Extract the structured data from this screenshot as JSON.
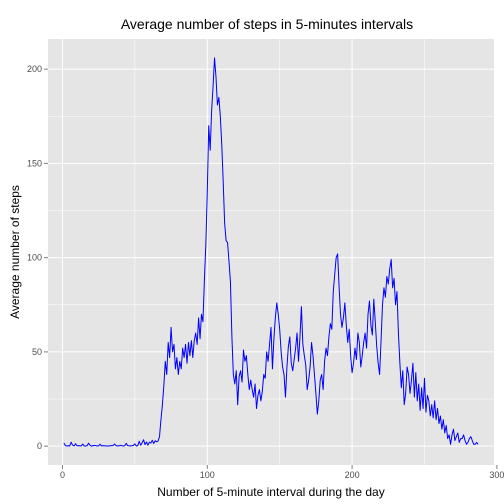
{
  "chart_data": {
    "type": "line",
    "title": "Average number of steps in 5-minutes intervals",
    "xlabel": "Number of 5-minute interval during the day",
    "ylabel": "Average number of steps",
    "xlim": [
      -10,
      298
    ],
    "ylim": [
      -10,
      216
    ],
    "xticks": [
      0,
      100,
      200,
      300
    ],
    "yticks": [
      0,
      50,
      100,
      150,
      200
    ],
    "grid": true,
    "legend": "none",
    "colors": {
      "panel": "#e5e5e5",
      "grid": "#ffffff",
      "line": "#0000ff",
      "tick_text": "#4d4d4d",
      "tick": "#7f7f7f"
    },
    "series": [
      {
        "points": [
          [
            1,
            1.7
          ],
          [
            2,
            0.3
          ],
          [
            3,
            0.1
          ],
          [
            4,
            0.2
          ],
          [
            5,
            0.1
          ],
          [
            6,
            2.1
          ],
          [
            7,
            0.5
          ],
          [
            8,
            0.1
          ],
          [
            9,
            1.3
          ],
          [
            10,
            0.2
          ],
          [
            11,
            0.3
          ],
          [
            12,
            0.2
          ],
          [
            13,
            0.1
          ],
          [
            14,
            1.1
          ],
          [
            15,
            0.1
          ],
          [
            16,
            0.1
          ],
          [
            17,
            0.2
          ],
          [
            18,
            1.6
          ],
          [
            19,
            0.5
          ],
          [
            20,
            0
          ],
          [
            21,
            0.2
          ],
          [
            22,
            0.4
          ],
          [
            23,
            0.3
          ],
          [
            24,
            0.1
          ],
          [
            25,
            0.2
          ],
          [
            26,
            1
          ],
          [
            27,
            0.1
          ],
          [
            28,
            0.3
          ],
          [
            29,
            0.2
          ],
          [
            30,
            0.1
          ],
          [
            31,
            0.1
          ],
          [
            32,
            0.1
          ],
          [
            33,
            0.2
          ],
          [
            34,
            0.3
          ],
          [
            35,
            0.3
          ],
          [
            36,
            1.2
          ],
          [
            37,
            0.3
          ],
          [
            38,
            0.1
          ],
          [
            39,
            0.2
          ],
          [
            40,
            0.4
          ],
          [
            41,
            0.2
          ],
          [
            42,
            0.1
          ],
          [
            43,
            0.2
          ],
          [
            44,
            1.5
          ],
          [
            45,
            0.3
          ],
          [
            46,
            0.2
          ],
          [
            47,
            0.1
          ],
          [
            48,
            0.2
          ],
          [
            49,
            0.4
          ],
          [
            50,
            1.2
          ],
          [
            51,
            0.1
          ],
          [
            52,
            0.3
          ],
          [
            53,
            2.6
          ],
          [
            54,
            0.5
          ],
          [
            55,
            1.8
          ],
          [
            56,
            3.4
          ],
          [
            57,
            0.8
          ],
          [
            58,
            2.2
          ],
          [
            59,
            0.5
          ],
          [
            60,
            2.1
          ],
          [
            61,
            1.6
          ],
          [
            62,
            3.1
          ],
          [
            63,
            1.4
          ],
          [
            64,
            2.9
          ],
          [
            65,
            2.3
          ],
          [
            66,
            2.7
          ],
          [
            67,
            5
          ],
          [
            68,
            14
          ],
          [
            69,
            22
          ],
          [
            70,
            32
          ],
          [
            71,
            45
          ],
          [
            72,
            38
          ],
          [
            73,
            55
          ],
          [
            74,
            47
          ],
          [
            75,
            63
          ],
          [
            76,
            50
          ],
          [
            77,
            54
          ],
          [
            78,
            41
          ],
          [
            79,
            47
          ],
          [
            80,
            38
          ],
          [
            81,
            45
          ],
          [
            82,
            41
          ],
          [
            83,
            52
          ],
          [
            84,
            47
          ],
          [
            85,
            54
          ],
          [
            86,
            44
          ],
          [
            87,
            55
          ],
          [
            88,
            48
          ],
          [
            89,
            56
          ],
          [
            90,
            47
          ],
          [
            91,
            56
          ],
          [
            92,
            60
          ],
          [
            93,
            54
          ],
          [
            94,
            68
          ],
          [
            95,
            57
          ],
          [
            96,
            70
          ],
          [
            97,
            66
          ],
          [
            98,
            88
          ],
          [
            99,
            107
          ],
          [
            100,
            135
          ],
          [
            101,
            170
          ],
          [
            102,
            157
          ],
          [
            103,
            178
          ],
          [
            104,
            191
          ],
          [
            105,
            206
          ],
          [
            106,
            196
          ],
          [
            107,
            181
          ],
          [
            108,
            185
          ],
          [
            109,
            175
          ],
          [
            110,
            160
          ],
          [
            111,
            140
          ],
          [
            112,
            118
          ],
          [
            113,
            109
          ],
          [
            114,
            108
          ],
          [
            115,
            98
          ],
          [
            116,
            87
          ],
          [
            117,
            58
          ],
          [
            118,
            38
          ],
          [
            119,
            33
          ],
          [
            120,
            40
          ],
          [
            121,
            22
          ],
          [
            122,
            37
          ],
          [
            123,
            40
          ],
          [
            124,
            34
          ],
          [
            125,
            51
          ],
          [
            126,
            45
          ],
          [
            127,
            48
          ],
          [
            128,
            38
          ],
          [
            129,
            30
          ],
          [
            130,
            35
          ],
          [
            131,
            30
          ],
          [
            132,
            26
          ],
          [
            133,
            33
          ],
          [
            134,
            20
          ],
          [
            135,
            27
          ],
          [
            136,
            30
          ],
          [
            137,
            24
          ],
          [
            138,
            29
          ],
          [
            139,
            38
          ],
          [
            140,
            36
          ],
          [
            141,
            50
          ],
          [
            142,
            45
          ],
          [
            143,
            54
          ],
          [
            144,
            63
          ],
          [
            145,
            41
          ],
          [
            146,
            57
          ],
          [
            147,
            68
          ],
          [
            148,
            76
          ],
          [
            149,
            70
          ],
          [
            150,
            62
          ],
          [
            151,
            50
          ],
          [
            152,
            42
          ],
          [
            153,
            38
          ],
          [
            154,
            26
          ],
          [
            155,
            42
          ],
          [
            156,
            53
          ],
          [
            157,
            58
          ],
          [
            158,
            44
          ],
          [
            159,
            40
          ],
          [
            160,
            46
          ],
          [
            161,
            52
          ],
          [
            162,
            60
          ],
          [
            163,
            45
          ],
          [
            164,
            58
          ],
          [
            165,
            74
          ],
          [
            166,
            54
          ],
          [
            167,
            48
          ],
          [
            168,
            43
          ],
          [
            169,
            30
          ],
          [
            170,
            35
          ],
          [
            171,
            42
          ],
          [
            172,
            55
          ],
          [
            173,
            48
          ],
          [
            174,
            38
          ],
          [
            175,
            28
          ],
          [
            176,
            17
          ],
          [
            177,
            24
          ],
          [
            178,
            35
          ],
          [
            179,
            38
          ],
          [
            180,
            30
          ],
          [
            181,
            45
          ],
          [
            182,
            52
          ],
          [
            183,
            48
          ],
          [
            184,
            58
          ],
          [
            185,
            65
          ],
          [
            186,
            62
          ],
          [
            187,
            82
          ],
          [
            188,
            91
          ],
          [
            189,
            100
          ],
          [
            190,
            102
          ],
          [
            191,
            85
          ],
          [
            192,
            70
          ],
          [
            193,
            63
          ],
          [
            194,
            68
          ],
          [
            195,
            76
          ],
          [
            196,
            64
          ],
          [
            197,
            55
          ],
          [
            198,
            62
          ],
          [
            199,
            48
          ],
          [
            200,
            39
          ],
          [
            201,
            44
          ],
          [
            202,
            52
          ],
          [
            203,
            46
          ],
          [
            204,
            60
          ],
          [
            205,
            55
          ],
          [
            206,
            42
          ],
          [
            207,
            48
          ],
          [
            208,
            55
          ],
          [
            209,
            60
          ],
          [
            210,
            52
          ],
          [
            211,
            70
          ],
          [
            212,
            77
          ],
          [
            213,
            64
          ],
          [
            214,
            59
          ],
          [
            215,
            78
          ],
          [
            216,
            66
          ],
          [
            217,
            53
          ],
          [
            218,
            44
          ],
          [
            219,
            38
          ],
          [
            220,
            56
          ],
          [
            221,
            75
          ],
          [
            222,
            84
          ],
          [
            223,
            79
          ],
          [
            224,
            90
          ],
          [
            225,
            86
          ],
          [
            226,
            94
          ],
          [
            227,
            99
          ],
          [
            228,
            84
          ],
          [
            229,
            89
          ],
          [
            230,
            75
          ],
          [
            231,
            82
          ],
          [
            232,
            60
          ],
          [
            233,
            44
          ],
          [
            234,
            31
          ],
          [
            235,
            40
          ],
          [
            236,
            22
          ],
          [
            237,
            28
          ],
          [
            238,
            42
          ],
          [
            239,
            38
          ],
          [
            240,
            28
          ],
          [
            241,
            35
          ],
          [
            242,
            44
          ],
          [
            243,
            26
          ],
          [
            244,
            39
          ],
          [
            245,
            24
          ],
          [
            246,
            33
          ],
          [
            247,
            19
          ],
          [
            248,
            31
          ],
          [
            249,
            20
          ],
          [
            250,
            36
          ],
          [
            251,
            18
          ],
          [
            252,
            27
          ],
          [
            253,
            24
          ],
          [
            254,
            16
          ],
          [
            255,
            22
          ],
          [
            256,
            15
          ],
          [
            257,
            24
          ],
          [
            258,
            14
          ],
          [
            259,
            20
          ],
          [
            260,
            12
          ],
          [
            261,
            16
          ],
          [
            262,
            9
          ],
          [
            263,
            14
          ],
          [
            264,
            7
          ],
          [
            265,
            11
          ],
          [
            266,
            4
          ],
          [
            267,
            6
          ],
          [
            268,
            1
          ],
          [
            269,
            6
          ],
          [
            270,
            9
          ],
          [
            271,
            3
          ],
          [
            272,
            5
          ],
          [
            273,
            7
          ],
          [
            274,
            2
          ],
          [
            275,
            4
          ],
          [
            276,
            4
          ],
          [
            277,
            6
          ],
          [
            278,
            3
          ],
          [
            279,
            1
          ],
          [
            280,
            2
          ],
          [
            281,
            4
          ],
          [
            282,
            5
          ],
          [
            283,
            3
          ],
          [
            284,
            1
          ],
          [
            285,
            1
          ],
          [
            286,
            2
          ],
          [
            287,
            1
          ]
        ]
      }
    ]
  }
}
